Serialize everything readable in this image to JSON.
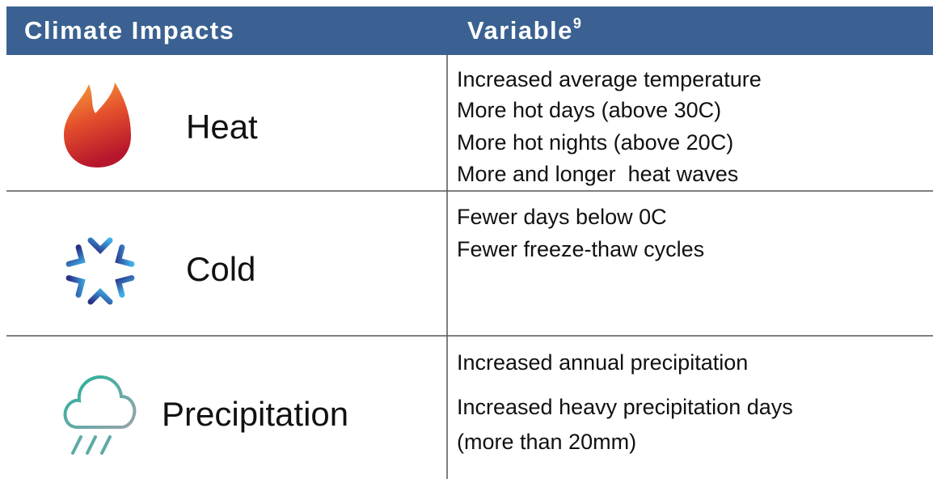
{
  "header": {
    "impacts": "Climate Impacts",
    "variable": "Variable",
    "variable_note": "9"
  },
  "rows": [
    {
      "impact": "Heat",
      "variables": [
        "Increased average temperature",
        "More hot days (above 30C)",
        "More hot nights (above 20C)",
        "More and longer  heat waves"
      ]
    },
    {
      "impact": "Cold",
      "variables": [
        "Fewer days below 0C",
        "Fewer freeze-thaw cycles"
      ]
    },
    {
      "impact": "Precipitation",
      "variables": [
        "Increased annual precipitation",
        "Increased heavy precipitation days",
        "(more than 20mm)"
      ]
    }
  ]
}
